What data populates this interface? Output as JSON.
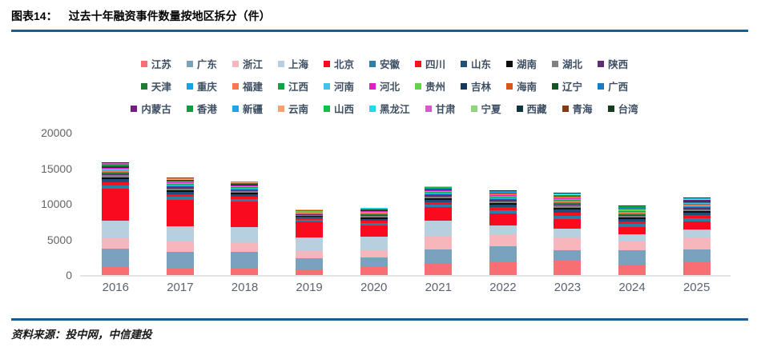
{
  "header": {
    "figure_label": "图表14：",
    "title": "过去十年融资事件数量按地区拆分（件）"
  },
  "footer": {
    "source": "资料来源：投中网，中信建投"
  },
  "colors": {
    "rule_blue": "#1A5C95",
    "axis_text": "#646464",
    "legend_text": "#3E4F63",
    "baseline_gray": "#E4E4E4"
  },
  "chart_data": {
    "type": "bar",
    "stacked": true,
    "title": "过去十年融资事件数量按地区拆分（件）",
    "xlabel": "",
    "ylabel": "",
    "ylim": [
      0,
      20000
    ],
    "yticks": [
      0,
      5000,
      10000,
      15000,
      20000
    ],
    "grid": false,
    "legend_position": "top",
    "legend_rows": 3,
    "legend_items_per_row": 11,
    "categories": [
      "2016",
      "2017",
      "2018",
      "2019",
      "2020",
      "2021",
      "2022",
      "2023",
      "2024",
      "2025"
    ],
    "series": [
      {
        "name": "江苏",
        "color": "#F76E73",
        "values": [
          1100,
          1000,
          1000,
          800,
          1250,
          1570,
          1900,
          2000,
          1450,
          1900
        ]
      },
      {
        "name": "广东",
        "color": "#78A2BE",
        "values": [
          2600,
          2300,
          2250,
          1560,
          1250,
          2000,
          2150,
          1450,
          2030,
          1700
        ]
      },
      {
        "name": "浙江",
        "color": "#F7B6BC",
        "values": [
          1500,
          1400,
          1350,
          1000,
          1000,
          1800,
          1700,
          1800,
          1240,
          1680
        ]
      },
      {
        "name": "上海",
        "color": "#B7CFDF",
        "values": [
          2450,
          2150,
          2150,
          1900,
          1950,
          2250,
          1250,
          1250,
          1010,
          1120
        ]
      },
      {
        "name": "北京",
        "color": "#FA0A1E",
        "values": [
          4500,
          3700,
          3600,
          2250,
          1500,
          1900,
          1700,
          1350,
          1010,
          1120
        ]
      },
      {
        "name": "安徽",
        "color": "#2C7FA6",
        "values": [
          490,
          420,
          380,
          240,
          350,
          400,
          440,
          500,
          410,
          450
        ]
      },
      {
        "name": "四川",
        "color": "#F5121E",
        "values": [
          440,
          380,
          340,
          220,
          310,
          360,
          390,
          450,
          370,
          410
        ]
      },
      {
        "name": "山东",
        "color": "#1F4E79",
        "values": [
          390,
          340,
          300,
          190,
          280,
          320,
          350,
          400,
          330,
          360
        ]
      },
      {
        "name": "湖南",
        "color": "#0D0D0D",
        "values": [
          240,
          210,
          190,
          120,
          170,
          200,
          220,
          250,
          210,
          230
        ]
      },
      {
        "name": "湖北",
        "color": "#808080",
        "values": [
          290,
          250,
          230,
          140,
          210,
          240,
          260,
          300,
          250,
          270
        ]
      },
      {
        "name": "陕西",
        "color": "#5B2C78",
        "values": [
          190,
          170,
          150,
          100,
          140,
          160,
          170,
          200,
          160,
          180
        ]
      },
      {
        "name": "天津",
        "color": "#1E7B34",
        "values": [
          150,
          130,
          110,
          70,
          100,
          120,
          130,
          150,
          120,
          140
        ]
      },
      {
        "name": "重庆",
        "color": "#1BA1E2",
        "values": [
          150,
          130,
          110,
          70,
          100,
          120,
          130,
          150,
          120,
          140
        ]
      },
      {
        "name": "福建",
        "color": "#F4794B",
        "values": [
          190,
          170,
          150,
          100,
          140,
          160,
          170,
          200,
          160,
          180
        ]
      },
      {
        "name": "江西",
        "color": "#12A348",
        "values": [
          100,
          80,
          80,
          50,
          70,
          80,
          90,
          100,
          80,
          90
        ]
      },
      {
        "name": "河南",
        "color": "#41C3E8",
        "values": [
          150,
          130,
          110,
          70,
          100,
          120,
          130,
          150,
          120,
          140
        ]
      },
      {
        "name": "河北",
        "color": "#DC1FC8",
        "values": [
          100,
          80,
          80,
          50,
          70,
          80,
          90,
          100,
          80,
          90
        ]
      },
      {
        "name": "贵州",
        "color": "#67D14F",
        "values": [
          80,
          70,
          60,
          40,
          60,
          60,
          70,
          80,
          70,
          70
        ]
      },
      {
        "name": "吉林",
        "color": "#16365C",
        "values": [
          60,
          50,
          50,
          30,
          40,
          50,
          50,
          60,
          50,
          50
        ]
      },
      {
        "name": "海南",
        "color": "#D85618",
        "values": [
          50,
          40,
          40,
          20,
          30,
          40,
          40,
          50,
          40,
          50
        ]
      },
      {
        "name": "辽宁",
        "color": "#175422",
        "values": [
          80,
          70,
          60,
          40,
          60,
          60,
          70,
          80,
          70,
          70
        ]
      },
      {
        "name": "广西",
        "color": "#1B7BC0",
        "values": [
          60,
          50,
          50,
          30,
          40,
          50,
          50,
          60,
          50,
          50
        ]
      },
      {
        "name": "内蒙古",
        "color": "#731F7E",
        "values": [
          50,
          40,
          40,
          20,
          30,
          40,
          40,
          50,
          40,
          50
        ]
      },
      {
        "name": "香港",
        "color": "#17983D",
        "values": [
          60,
          50,
          50,
          30,
          40,
          50,
          50,
          60,
          50,
          50
        ]
      },
      {
        "name": "新疆",
        "color": "#14A8E8",
        "values": [
          50,
          40,
          40,
          20,
          30,
          40,
          40,
          50,
          40,
          50
        ]
      },
      {
        "name": "云南",
        "color": "#F7A072",
        "values": [
          60,
          50,
          50,
          30,
          40,
          50,
          50,
          60,
          50,
          50
        ]
      },
      {
        "name": "山西",
        "color": "#10BE48",
        "values": [
          50,
          40,
          40,
          20,
          30,
          40,
          40,
          50,
          40,
          50
        ]
      },
      {
        "name": "黑龙江",
        "color": "#2ED3F0",
        "values": [
          50,
          40,
          40,
          20,
          30,
          40,
          40,
          50,
          40,
          50
        ]
      },
      {
        "name": "甘肃",
        "color": "#D957C8",
        "values": [
          40,
          30,
          30,
          20,
          30,
          30,
          30,
          40,
          30,
          40
        ]
      },
      {
        "name": "宁夏",
        "color": "#8FD67C",
        "values": [
          30,
          30,
          20,
          10,
          20,
          20,
          30,
          30,
          20,
          30
        ]
      },
      {
        "name": "西藏",
        "color": "#103540",
        "values": [
          30,
          30,
          20,
          10,
          20,
          20,
          30,
          30,
          20,
          30
        ]
      },
      {
        "name": "青海",
        "color": "#843A12",
        "values": [
          20,
          20,
          20,
          10,
          10,
          20,
          20,
          20,
          20,
          20
        ]
      },
      {
        "name": "台湾",
        "color": "#123D20",
        "values": [
          30,
          30,
          20,
          10,
          20,
          20,
          30,
          30,
          20,
          30
        ]
      }
    ],
    "totals_approx": [
      15830,
      13720,
      13210,
      9290,
      9520,
      12530,
      11950,
      11530,
      9800,
      10940
    ]
  }
}
